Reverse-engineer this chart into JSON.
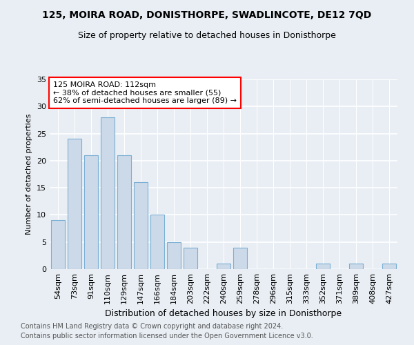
{
  "title": "125, MOIRA ROAD, DONISTHORPE, SWADLINCOTE, DE12 7QD",
  "subtitle": "Size of property relative to detached houses in Donisthorpe",
  "xlabel": "Distribution of detached houses by size in Donisthorpe",
  "ylabel": "Number of detached properties",
  "footnote1": "Contains HM Land Registry data © Crown copyright and database right 2024.",
  "footnote2": "Contains public sector information licensed under the Open Government Licence v3.0.",
  "categories": [
    "54sqm",
    "73sqm",
    "91sqm",
    "110sqm",
    "129sqm",
    "147sqm",
    "166sqm",
    "184sqm",
    "203sqm",
    "222sqm",
    "240sqm",
    "259sqm",
    "278sqm",
    "296sqm",
    "315sqm",
    "333sqm",
    "352sqm",
    "371sqm",
    "389sqm",
    "408sqm",
    "427sqm"
  ],
  "values": [
    9,
    24,
    21,
    28,
    21,
    16,
    10,
    5,
    4,
    0,
    1,
    4,
    0,
    0,
    0,
    0,
    1,
    0,
    1,
    0,
    1
  ],
  "bar_color": "#ccd9e8",
  "bar_edge_color": "#7aafd4",
  "highlight_bar_index": 3,
  "annotation_line1": "125 MOIRA ROAD: 112sqm",
  "annotation_line2": "← 38% of detached houses are smaller (55)",
  "annotation_line3": "62% of semi-detached houses are larger (89) →",
  "annotation_box_color": "white",
  "annotation_box_edge_color": "red",
  "ylim": [
    0,
    35
  ],
  "yticks": [
    0,
    5,
    10,
    15,
    20,
    25,
    30,
    35
  ],
  "background_color": "#e8eef4",
  "grid_color": "white",
  "title_fontsize": 10,
  "subtitle_fontsize": 9,
  "xlabel_fontsize": 9,
  "ylabel_fontsize": 8,
  "tick_fontsize": 8,
  "footnote_fontsize": 7,
  "annotation_fontsize": 8
}
